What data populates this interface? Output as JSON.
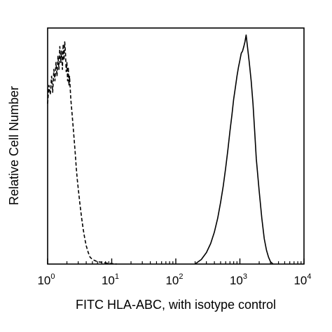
{
  "chart_data": {
    "type": "line",
    "title": "",
    "xlabel": "FITC HLA-ABC, with isotype control",
    "ylabel": "Relative Cell Number",
    "x_scale": "log",
    "xlim": [
      1,
      10000
    ],
    "ylim": [
      0,
      100
    ],
    "grid": false,
    "legend": "none",
    "x_ticks": [
      {
        "value": 1,
        "base": "10",
        "exp": "0"
      },
      {
        "value": 10,
        "base": "10",
        "exp": "1"
      },
      {
        "value": 100,
        "base": "10",
        "exp": "2"
      },
      {
        "value": 1000,
        "base": "10",
        "exp": "3"
      },
      {
        "value": 10000,
        "base": "10",
        "exp": "4"
      }
    ],
    "series": [
      {
        "style": "dashed",
        "x": [
          1.0,
          1.05,
          1.1,
          1.15,
          1.2,
          1.25,
          1.3,
          1.35,
          1.4,
          1.45,
          1.5,
          1.55,
          1.6,
          1.65,
          1.7,
          1.75,
          1.8,
          1.85,
          1.9,
          1.95,
          2.0,
          2.05,
          2.1,
          2.15,
          2.2,
          2.3,
          2.4,
          2.5,
          2.6,
          2.7,
          2.8,
          2.9,
          3.0,
          3.2,
          3.4,
          3.6,
          3.8,
          4.0,
          4.3,
          4.6,
          5.0,
          5.5,
          6.0,
          7.0,
          8.0,
          9.0,
          10.0,
          12.0
        ],
        "y": [
          70,
          78,
          74,
          82,
          75,
          85,
          80,
          88,
          82,
          91,
          85,
          95,
          88,
          93,
          85,
          96,
          89,
          97,
          92,
          84,
          88,
          80,
          86,
          78,
          82,
          72,
          66,
          60,
          54,
          48,
          42,
          37,
          33,
          26,
          20,
          15,
          11,
          8,
          5,
          3,
          2,
          1.5,
          1,
          0.8,
          0.5,
          0.3,
          0.2,
          0
        ]
      },
      {
        "style": "solid",
        "x": [
          200,
          250,
          300,
          350,
          400,
          450,
          500,
          550,
          600,
          650,
          700,
          750,
          800,
          850,
          900,
          950,
          1000,
          1050,
          1100,
          1150,
          1200,
          1250,
          1300,
          1350,
          1400,
          1500,
          1600,
          1700,
          1800,
          2000,
          2200,
          2400,
          2600,
          2800,
          3000,
          3300
        ],
        "y": [
          0,
          2,
          5,
          9,
          14,
          20,
          27,
          34,
          42,
          50,
          58,
          65,
          72,
          77,
          82,
          86,
          89,
          92,
          93,
          95,
          97,
          100,
          96,
          92,
          88,
          80,
          70,
          58,
          46,
          32,
          20,
          11,
          6,
          3,
          1,
          0
        ]
      }
    ]
  }
}
